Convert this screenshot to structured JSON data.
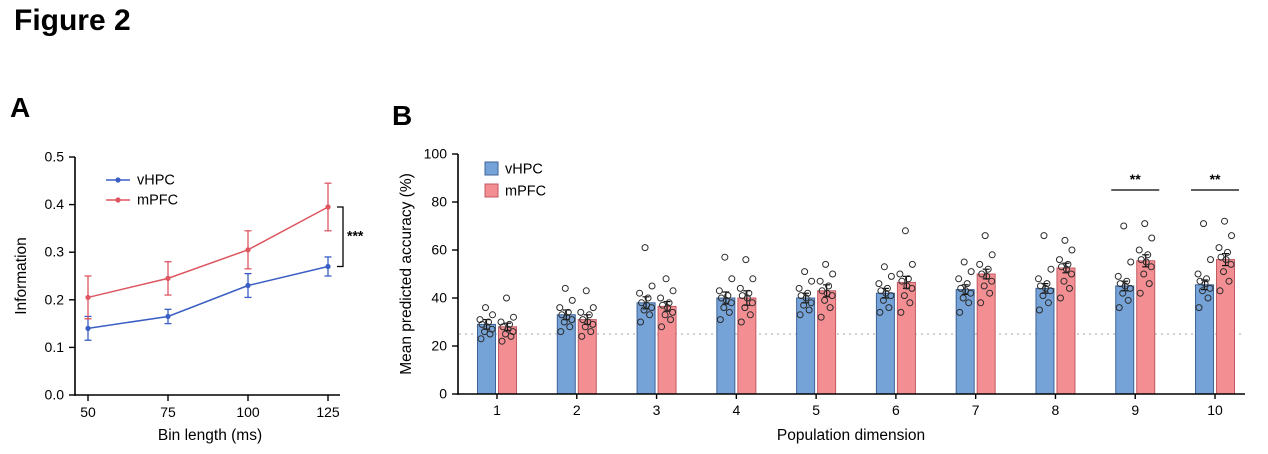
{
  "figure": {
    "title": "Figure 2",
    "panel_a_label": "A",
    "panel_b_label": "B"
  },
  "colors": {
    "vhpc_line": "#3a5ec4",
    "mpfc_line": "#dd5660",
    "vhpc_bar_fill": "#76a3d7",
    "vhpc_bar_edge": "#3d6399",
    "mpfc_bar_fill": "#f38f93",
    "mpfc_bar_edge": "#c05a62",
    "dot_stroke": "#2b2b2b",
    "chance_line": "#c4c4c4",
    "axis": "#000000"
  },
  "chart_data": [
    {
      "type": "line",
      "title": "",
      "xlabel": "Bin length (ms)",
      "ylabel": "Information",
      "x": [
        50,
        75,
        100,
        125
      ],
      "ylim": [
        0,
        0.5
      ],
      "yticks": [
        0.0,
        0.1,
        0.2,
        0.3,
        0.4,
        0.5
      ],
      "legend_position": "top-left",
      "series": [
        {
          "name": "vHPC",
          "values": [
            0.14,
            0.165,
            0.23,
            0.27
          ],
          "errors": [
            0.025,
            0.015,
            0.025,
            0.02
          ]
        },
        {
          "name": "mPFC",
          "values": [
            0.205,
            0.245,
            0.305,
            0.395
          ],
          "errors": [
            0.045,
            0.035,
            0.04,
            0.05
          ]
        }
      ],
      "significance": {
        "comparison": "vHPC vs mPFC at 125 ms",
        "label": "***"
      }
    },
    {
      "type": "bar",
      "title": "",
      "xlabel": "Population dimension",
      "ylabel": "Mean predicted accuracy (%)",
      "categories": [
        "1",
        "2",
        "3",
        "4",
        "5",
        "6",
        "7",
        "8",
        "9",
        "10"
      ],
      "ylim": [
        0,
        100
      ],
      "yticks": [
        0,
        20,
        40,
        60,
        80,
        100
      ],
      "chance_level": 25,
      "legend_position": "top-left",
      "series": [
        {
          "name": "vHPC",
          "values": [
            29,
            33,
            38,
            40,
            40,
            42,
            43.5,
            44,
            45,
            45.5
          ],
          "errors": [
            2,
            2,
            2.5,
            2.5,
            2,
            2,
            2,
            2,
            2,
            2
          ],
          "points": [
            [
              23,
              25,
              26,
              27,
              28,
              29,
              30,
              31,
              33,
              36
            ],
            [
              26,
              28,
              30,
              31,
              32,
              33,
              34,
              36,
              39,
              44
            ],
            [
              30,
              33,
              35,
              36,
              37,
              38,
              40,
              42,
              45,
              61
            ],
            [
              31,
              34,
              36,
              38,
              39,
              40,
              41,
              43,
              48,
              57
            ],
            [
              33,
              35,
              37,
              38,
              40,
              41,
              42,
              44,
              47,
              51
            ],
            [
              34,
              36,
              39,
              41,
              42,
              43,
              44,
              46,
              49,
              53
            ],
            [
              34,
              38,
              40,
              42,
              43,
              44,
              46,
              48,
              51,
              55
            ],
            [
              35,
              38,
              41,
              43,
              44,
              45,
              46,
              48,
              52,
              66
            ],
            [
              36,
              39,
              42,
              44,
              45,
              46,
              47,
              49,
              55,
              70
            ],
            [
              36,
              40,
              43,
              44,
              46,
              47,
              48,
              50,
              56,
              71
            ]
          ]
        },
        {
          "name": "mPFC",
          "values": [
            28,
            31,
            36.5,
            40,
            43,
            46.5,
            50,
            52.5,
            55.5,
            56
          ],
          "errors": [
            1.5,
            2,
            2,
            3,
            2.5,
            2.5,
            2,
            2,
            2.5,
            2.5
          ],
          "points": [
            [
              22,
              24,
              25,
              26,
              27,
              28,
              29,
              30,
              32,
              40
            ],
            [
              24,
              26,
              28,
              29,
              30,
              31,
              33,
              34,
              36,
              43
            ],
            [
              28,
              31,
              33,
              34,
              36,
              37,
              38,
              40,
              43,
              48
            ],
            [
              30,
              33,
              36,
              38,
              40,
              41,
              42,
              44,
              48,
              56
            ],
            [
              32,
              36,
              39,
              41,
              42,
              43,
              45,
              47,
              50,
              54
            ],
            [
              34,
              38,
              41,
              44,
              45,
              47,
              48,
              50,
              54,
              68
            ],
            [
              38,
              42,
              45,
              47,
              49,
              50,
              52,
              54,
              58,
              66
            ],
            [
              40,
              44,
              47,
              50,
              52,
              53,
              54,
              56,
              60,
              64
            ],
            [
              42,
              46,
              50,
              53,
              55,
              56,
              58,
              60,
              65,
              71
            ],
            [
              43,
              47,
              51,
              54,
              56,
              57,
              59,
              61,
              66,
              72
            ]
          ]
        }
      ],
      "significance": [
        {
          "category": 9,
          "label": "**"
        },
        {
          "category": 10,
          "label": "**"
        }
      ]
    }
  ]
}
